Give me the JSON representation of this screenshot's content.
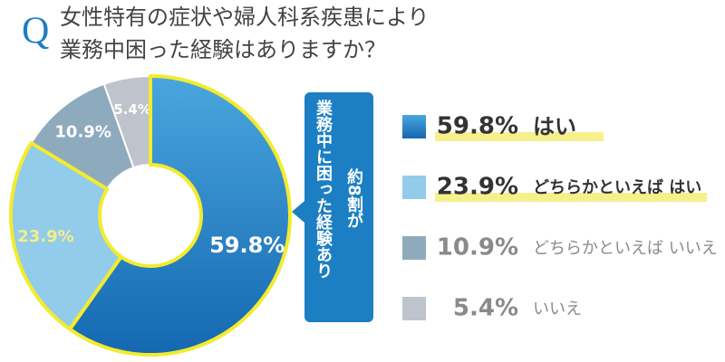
{
  "chart_data": {
    "type": "pie",
    "question_mark": "Q",
    "title_lines": [
      "女性特有の症状や婦人科系疾患により",
      "業務中困った経験はありますか？"
    ],
    "categories": [
      "はい",
      "どちらかといえば はい",
      "どちらかといえば いいえ",
      "いいえ"
    ],
    "values": [
      59.8,
      23.9,
      10.9,
      5.4
    ],
    "value_labels": [
      "59.8%",
      "23.9%",
      "10.9%",
      "5.4%"
    ],
    "colors": [
      "#1c7fc4",
      "#93cbea",
      "#8eabbd",
      "#bfc3cb"
    ],
    "callout": [
      "約8割が",
      "業務中に困った経験あり"
    ]
  }
}
